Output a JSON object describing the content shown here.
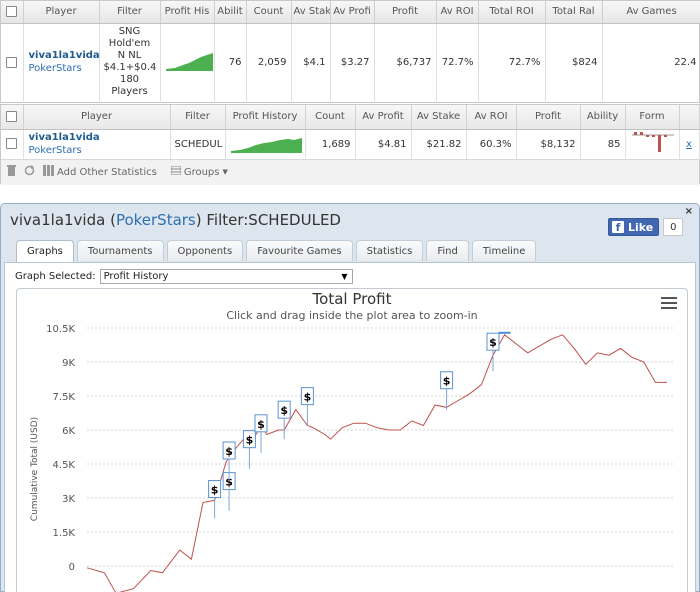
{
  "table1": {
    "headers": [
      "Player",
      "Filter",
      "Profit His",
      "Abilit",
      "Count",
      "Av Stak",
      "Av Profi",
      "Profit",
      "Av ROI",
      "Total ROI",
      "Total Ral",
      "Av Games"
    ],
    "row": {
      "player_name": "viva1la1vida",
      "site": "PokerStars",
      "filter_lines": [
        "SNG",
        "Hold'em",
        "N NL",
        "$4.1+$0.4",
        "180",
        "Players"
      ],
      "ability": "76",
      "count": "2,059",
      "av_stake": "$4.1",
      "av_profit": "$3.27",
      "profit": "$6,737",
      "av_roi": "72.7%",
      "total_roi": "72.7%",
      "total_rake": "$824",
      "av_games": "22.4"
    }
  },
  "table2": {
    "headers": [
      "Player",
      "Filter",
      "Profit History",
      "Count",
      "Av Profit",
      "Av Stake",
      "Av ROI",
      "Profit",
      "Ability",
      "Form"
    ],
    "row": {
      "player_name": "viva1la1vida",
      "site": "PokerStars",
      "filter": "SCHEDUL",
      "count": "1,689",
      "av_profit": "$4.81",
      "av_stake": "$21.82",
      "av_roi": "60.3%",
      "profit": "$8,132",
      "ability": "85",
      "remove": "x"
    },
    "toolbar": {
      "add_stats": "Add Other Statistics",
      "groups": "Groups"
    }
  },
  "dialog": {
    "title_prefix": "viva1la1vida (",
    "site": "PokerStars",
    "title_suffix": ") Filter:SCHEDULED",
    "close": "×",
    "like_label": "Like",
    "like_count": "0",
    "tabs": [
      "Graphs",
      "Tournaments",
      "Opponents",
      "Favourite Games",
      "Statistics",
      "Find",
      "Timeline"
    ],
    "active_tab": "Graphs",
    "graph_selected_label": "Graph Selected:",
    "graph_selected_value": "Profit History"
  },
  "chart_data": {
    "type": "line",
    "title": "Total Profit",
    "subtitle": "Click and drag inside the plot area to zoom-in",
    "ylabel": "Cumulative Total (USD)",
    "ytick_labels": [
      "10.5K",
      "9K",
      "7.5K",
      "6K",
      "4.5K",
      "3K",
      "1.5K",
      "0"
    ],
    "yticks": [
      10500,
      9000,
      7500,
      6000,
      4500,
      3000,
      1500,
      0
    ],
    "ylim": [
      -1200,
      10500
    ],
    "grid": true,
    "line_color": "#c0504d",
    "x": [
      0,
      3,
      5,
      8,
      11,
      13,
      16,
      18,
      20,
      22,
      24,
      25,
      27,
      28,
      30,
      31,
      33,
      34,
      36,
      38,
      39,
      41,
      42,
      44,
      46,
      48,
      50,
      52,
      54,
      56,
      58,
      60,
      62,
      64,
      66,
      68,
      70,
      72,
      74,
      76,
      78,
      80,
      82,
      84,
      86,
      88,
      90,
      92,
      94,
      96,
      98,
      100
    ],
    "y": [
      -80,
      -300,
      -1200,
      -1000,
      -200,
      -300,
      700,
      300,
      2800,
      2900,
      4600,
      5000,
      5600,
      5300,
      6200,
      5800,
      6000,
      6000,
      6900,
      6200,
      6100,
      5800,
      5600,
      6100,
      6300,
      6300,
      6100,
      6000,
      6000,
      6400,
      6200,
      7100,
      7000,
      7300,
      7600,
      8000,
      9300,
      10200,
      9800,
      9400,
      9700,
      10000,
      10200,
      9600,
      8900,
      9400,
      9300,
      9600,
      9200,
      9000,
      8100,
      8100
    ],
    "markers": [
      {
        "x": 22,
        "y": 2800
      },
      {
        "x": 24.5,
        "y": 3150
      },
      {
        "x": 24.5,
        "y": 4500
      },
      {
        "x": 28,
        "y": 5000
      },
      {
        "x": 30,
        "y": 5700
      },
      {
        "x": 34,
        "y": 6300
      },
      {
        "x": 38,
        "y": 6900
      },
      {
        "x": 62,
        "y": 7600
      },
      {
        "x": 70,
        "y": 9300
      }
    ]
  }
}
